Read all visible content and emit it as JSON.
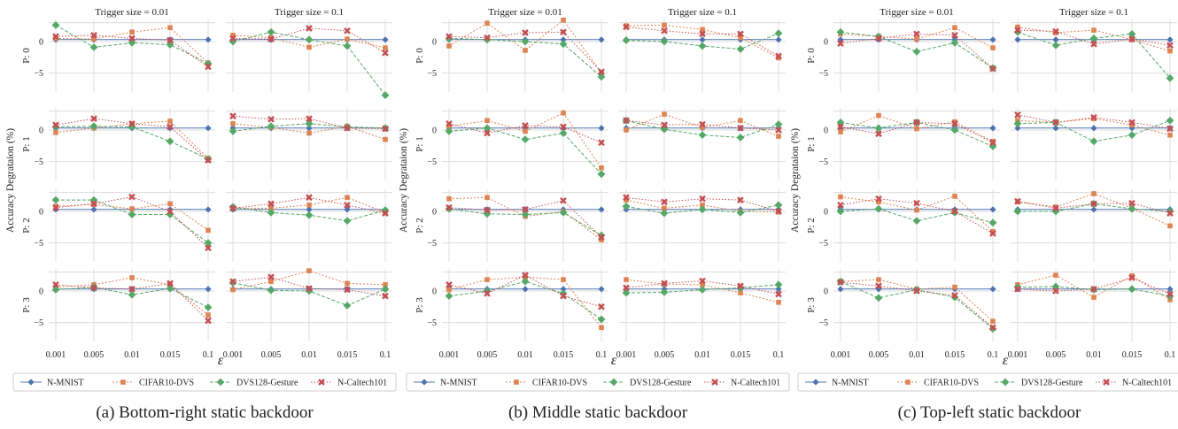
{
  "chart_data": {
    "type": "line",
    "x": [
      "0.001",
      "0.005",
      "0.01",
      "0.015",
      "0.1"
    ],
    "xlabel": "ε",
    "ylabel": "Accuracy Degrataion (%)",
    "ylim": [
      -8,
      3.5
    ],
    "yticks": [
      0,
      -5
    ],
    "grid": true,
    "legend_placement": "bottom",
    "columns": [
      "Trigger size = 0.01",
      "Trigger size = 0.1"
    ],
    "rows": [
      "P: 0",
      "P: 1",
      "P: 2",
      "P: 3"
    ],
    "series_names": [
      "N-MNIST",
      "CIFAR10-DVS",
      "DVS128-Gesture",
      "N-Caltech101"
    ],
    "series_colors": [
      "#4c72b0",
      "#dd8452",
      "#55a868",
      "#c44e52"
    ],
    "panels": [
      {
        "caption": "(a) Bottom-right static backdoor",
        "grid": [
          [
            {
              "series": [
                [
                  0.3,
                  0.3,
                  0.3,
                  0.3,
                  0.3
                ],
                [
                  0.5,
                  0.4,
                  1.5,
                  2.2,
                  -3.4
                ],
                [
                  2.6,
                  -0.9,
                  -0.2,
                  -0.5,
                  -3.5
                ],
                [
                  0.8,
                  1.0,
                  0.5,
                  0.2,
                  -4.0
                ]
              ]
            },
            {
              "series": [
                [
                  0.3,
                  0.3,
                  0.3,
                  0.3,
                  0.3
                ],
                [
                  1.0,
                  0.6,
                  -0.9,
                  0.4,
                  -1.0
                ],
                [
                  0.0,
                  1.5,
                  0.3,
                  -0.7,
                  -8.5
                ],
                [
                  0.5,
                  0.4,
                  2.1,
                  1.7,
                  -1.8
                ]
              ]
            }
          ],
          [
            {
              "series": [
                [
                  0.3,
                  0.3,
                  0.3,
                  0.3,
                  0.3
                ],
                [
                  -0.4,
                  0.3,
                  1.0,
                  1.4,
                  -4.5
                ],
                [
                  0.5,
                  0.6,
                  0.5,
                  -1.8,
                  -4.6
                ],
                [
                  0.8,
                  1.8,
                  1.0,
                  0.5,
                  -4.8
                ]
              ]
            },
            {
              "series": [
                [
                  0.3,
                  0.3,
                  0.3,
                  0.3,
                  0.3
                ],
                [
                  1.0,
                  0.4,
                  -0.5,
                  0.6,
                  -1.5
                ],
                [
                  -0.2,
                  0.6,
                  1.0,
                  0.5,
                  0.3
                ],
                [
                  2.2,
                  1.7,
                  1.8,
                  0.3,
                  0.2
                ]
              ]
            }
          ],
          [
            {
              "series": [
                [
                  0.3,
                  0.3,
                  0.3,
                  0.3,
                  0.3
                ],
                [
                  0.8,
                  1.1,
                  0.4,
                  1.2,
                  -3.0
                ],
                [
                  1.8,
                  1.8,
                  -0.5,
                  -0.5,
                  -5.0
                ],
                [
                  0.6,
                  1.2,
                  2.3,
                  0.0,
                  -5.8
                ]
              ]
            },
            {
              "series": [
                [
                  0.3,
                  0.3,
                  0.3,
                  0.3,
                  0.3
                ],
                [
                  0.5,
                  0.5,
                  1.0,
                  2.2,
                  -0.2
                ],
                [
                  0.7,
                  -0.2,
                  -0.6,
                  -1.5,
                  0.2
                ],
                [
                  0.5,
                  1.2,
                  2.2,
                  1.0,
                  -0.3
                ]
              ]
            }
          ],
          [
            {
              "series": [
                [
                  0.3,
                  0.3,
                  0.3,
                  0.3,
                  0.3
                ],
                [
                  0.6,
                  1.0,
                  2.1,
                  1.0,
                  -3.8
                ],
                [
                  0.2,
                  0.6,
                  -0.6,
                  0.4,
                  -2.6
                ],
                [
                  1.0,
                  0.5,
                  0.3,
                  1.2,
                  -4.7
                ]
              ]
            },
            {
              "series": [
                [
                  0.3,
                  0.3,
                  0.3,
                  0.3,
                  0.3
                ],
                [
                  0.2,
                  1.5,
                  3.2,
                  1.2,
                  1.0
                ],
                [
                  1.3,
                  0.1,
                  0.0,
                  -2.3,
                  0.3
                ],
                [
                  1.5,
                  2.2,
                  0.4,
                  0.2,
                  -0.8
                ]
              ]
            }
          ]
        ]
      },
      {
        "caption": "(b) Middle static backdoor",
        "grid": [
          [
            {
              "series": [
                [
                  0.3,
                  0.3,
                  0.3,
                  0.3,
                  0.3
                ],
                [
                  -0.7,
                  2.9,
                  -1.4,
                  3.4,
                  -5.0
                ],
                [
                  0.5,
                  0.3,
                  0.0,
                  -0.4,
                  -5.6
                ],
                [
                  0.8,
                  0.6,
                  1.4,
                  1.5,
                  -4.8
                ]
              ]
            },
            {
              "series": [
                [
                  0.3,
                  0.3,
                  0.3,
                  0.3,
                  0.3
                ],
                [
                  2.5,
                  2.6,
                  1.9,
                  0.6,
                  -2.6
                ],
                [
                  0.2,
                  0.0,
                  -0.7,
                  -1.2,
                  1.3
                ],
                [
                  2.3,
                  1.7,
                  1.2,
                  1.2,
                  -2.3
                ]
              ]
            }
          ],
          [
            {
              "series": [
                [
                  0.3,
                  0.3,
                  0.3,
                  0.3,
                  0.3
                ],
                [
                  0.6,
                  1.5,
                  -0.2,
                  2.7,
                  -6.0
                ],
                [
                  -0.2,
                  0.3,
                  -1.5,
                  -0.5,
                  -7.0
                ],
                [
                  1.0,
                  -0.5,
                  0.7,
                  0.5,
                  -2.0
                ]
              ]
            },
            {
              "series": [
                [
                  0.3,
                  0.3,
                  0.3,
                  0.3,
                  0.3
                ],
                [
                  0.0,
                  2.5,
                  0.4,
                  1.5,
                  -1.0
                ],
                [
                  1.5,
                  0.1,
                  -0.8,
                  -1.2,
                  0.9
                ],
                [
                  1.5,
                  0.8,
                  0.9,
                  0.3,
                  0.0
                ]
              ]
            }
          ],
          [
            {
              "series": [
                [
                  0.3,
                  0.3,
                  0.3,
                  0.3,
                  0.3
                ],
                [
                  2.0,
                  2.2,
                  -0.8,
                  0.0,
                  -4.5
                ],
                [
                  0.4,
                  -0.4,
                  -0.5,
                  -0.2,
                  -3.8
                ],
                [
                  0.6,
                  0.2,
                  0.3,
                  1.7,
                  -4.1
                ]
              ]
            },
            {
              "series": [
                [
                  0.3,
                  0.3,
                  0.3,
                  0.3,
                  0.3
                ],
                [
                  1.8,
                  0.5,
                  1.0,
                  0.0,
                  -0.1
                ],
                [
                  0.8,
                  -0.3,
                  0.3,
                  -0.2,
                  1.0
                ],
                [
                  2.2,
                  1.5,
                  2.0,
                  1.8,
                  0.0
                ]
              ]
            }
          ],
          [
            {
              "series": [
                [
                  0.3,
                  0.3,
                  0.3,
                  0.3,
                  0.3
                ],
                [
                  0.2,
                  1.8,
                  2.2,
                  1.8,
                  -5.8
                ],
                [
                  -0.8,
                  0.0,
                  1.5,
                  -0.4,
                  -4.5
                ],
                [
                  1.0,
                  -0.4,
                  2.5,
                  -0.8,
                  -2.5
                ]
              ]
            },
            {
              "series": [
                [
                  0.3,
                  0.3,
                  0.3,
                  0.3,
                  0.3
                ],
                [
                  1.8,
                  1.1,
                  1.0,
                  -0.3,
                  -1.8
                ],
                [
                  -0.3,
                  -0.2,
                  0.2,
                  0.5,
                  1.0
                ],
                [
                  0.5,
                  1.2,
                  1.6,
                  0.8,
                  -0.5
                ]
              ]
            }
          ]
        ]
      },
      {
        "caption": "(c) Top-left static backdoor",
        "grid": [
          [
            {
              "series": [
                [
                  0.3,
                  0.3,
                  0.3,
                  0.3,
                  0.3
                ],
                [
                  1.2,
                  0.8,
                  0.4,
                  2.2,
                  -1.0
                ],
                [
                  1.5,
                  0.8,
                  -1.6,
                  -0.2,
                  -4.2
                ],
                [
                  -0.3,
                  0.5,
                  1.2,
                  1.0,
                  -4.3
                ]
              ]
            },
            {
              "series": [
                [
                  0.3,
                  0.3,
                  0.3,
                  0.3,
                  0.3
                ],
                [
                  2.3,
                  1.4,
                  1.8,
                  0.3,
                  -1.5
                ],
                [
                  1.5,
                  -0.6,
                  0.5,
                  1.2,
                  -5.8
                ],
                [
                  1.8,
                  1.6,
                  -0.4,
                  0.4,
                  -0.6
                ]
              ]
            }
          ],
          [
            {
              "series": [
                [
                  0.3,
                  0.3,
                  0.3,
                  0.3,
                  0.3
                ],
                [
                  -0.3,
                  2.3,
                  0.2,
                  1.3,
                  -1.8
                ],
                [
                  1.2,
                  0.3,
                  1.2,
                  0.0,
                  -2.6
                ],
                [
                  0.5,
                  -0.6,
                  1.2,
                  1.0,
                  -2.0
                ]
              ]
            },
            {
              "series": [
                [
                  0.3,
                  0.3,
                  0.3,
                  0.3,
                  0.3
                ],
                [
                  1.5,
                  1.2,
                  1.8,
                  0.8,
                  -0.8
                ],
                [
                  1.0,
                  1.2,
                  -1.8,
                  -0.8,
                  1.5
                ],
                [
                  2.4,
                  1.2,
                  2.0,
                  1.2,
                  0.2
                ]
              ]
            }
          ],
          [
            {
              "series": [
                [
                  0.3,
                  0.3,
                  0.3,
                  0.3,
                  0.3
                ],
                [
                  2.3,
                  1.5,
                  0.2,
                  2.4,
                  -3.2
                ],
                [
                  0.0,
                  0.4,
                  -1.5,
                  -0.2,
                  -1.8
                ],
                [
                  1.0,
                  2.0,
                  1.3,
                  0.0,
                  -3.5
                ]
              ]
            },
            {
              "series": [
                [
                  0.3,
                  0.3,
                  0.3,
                  0.3,
                  0.3
                ],
                [
                  1.5,
                  0.7,
                  2.8,
                  0.5,
                  -2.3
                ],
                [
                  0.0,
                  0.0,
                  1.2,
                  0.4,
                  0.0
                ],
                [
                  1.6,
                  0.5,
                  1.2,
                  1.3,
                  -0.3
                ]
              ]
            }
          ],
          [
            {
              "series": [
                [
                  0.3,
                  0.3,
                  0.3,
                  0.3,
                  0.3
                ],
                [
                  1.5,
                  1.8,
                  0.3,
                  0.6,
                  -4.8
                ],
                [
                  1.5,
                  -1.1,
                  0.2,
                  -1.0,
                  -6.0
                ],
                [
                  1.4,
                  0.8,
                  0.0,
                  -0.7,
                  -5.8
                ]
              ]
            },
            {
              "series": [
                [
                  0.3,
                  0.3,
                  0.3,
                  0.3,
                  0.3
                ],
                [
                  1.0,
                  2.5,
                  -1.0,
                  2.4,
                  -1.4
                ],
                [
                  0.6,
                  0.7,
                  0.2,
                  0.3,
                  -0.8
                ],
                [
                  0.3,
                  0.0,
                  0.3,
                  2.1,
                  -0.5
                ]
              ]
            }
          ]
        ]
      }
    ]
  }
}
